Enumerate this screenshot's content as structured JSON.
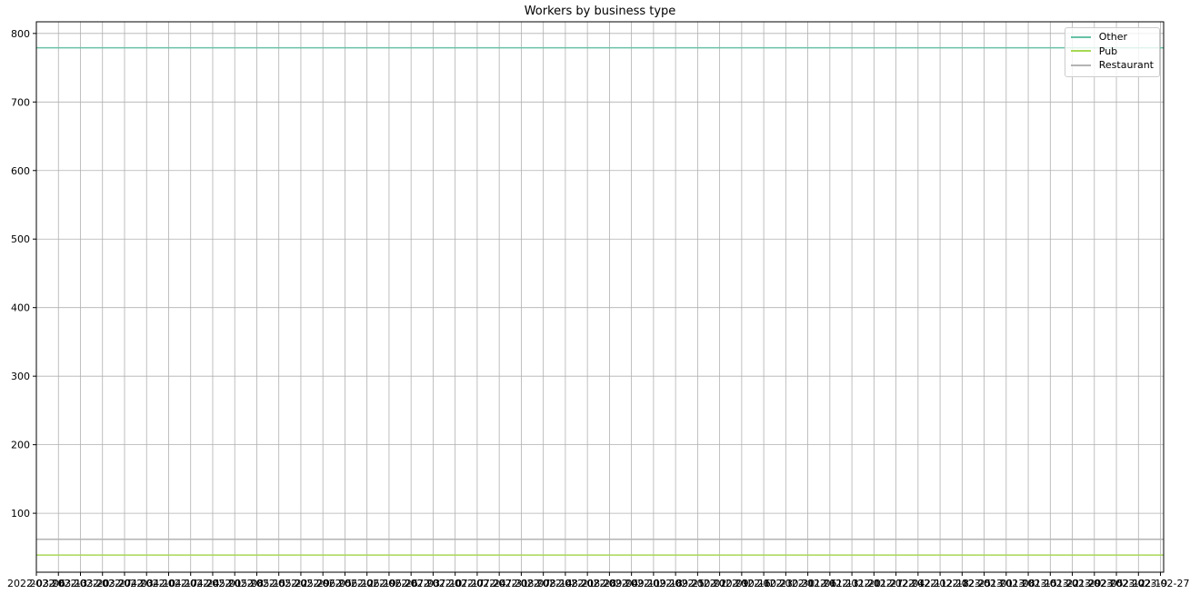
{
  "chart_data": {
    "type": "line",
    "title": "Workers by business type",
    "xlabel": "",
    "ylabel": "",
    "x_start": "2022-03-06",
    "x_end": "2023-02-27",
    "x_tick_first_label": "2022-03-06",
    "x_tick_last_label": "2023-02-27",
    "ylim": [
      14,
      817
    ],
    "y_ticks": [
      100,
      200,
      300,
      400,
      500,
      600,
      700,
      800
    ],
    "grid": true,
    "legend_position": "top-right",
    "series": [
      {
        "name": "Other",
        "color": "#66c2a5",
        "x": [
          "2022-03-06",
          "2023-02-27"
        ],
        "values": [
          779,
          779
        ]
      },
      {
        "name": "Pub",
        "color": "#a6d854",
        "x": [
          "2022-03-06",
          "2023-02-27"
        ],
        "values": [
          39,
          39
        ]
      },
      {
        "name": "Restaurant",
        "color": "#b3b3b3",
        "x": [
          "2022-03-06",
          "2023-02-27"
        ],
        "values": [
          62,
          62
        ]
      }
    ]
  }
}
